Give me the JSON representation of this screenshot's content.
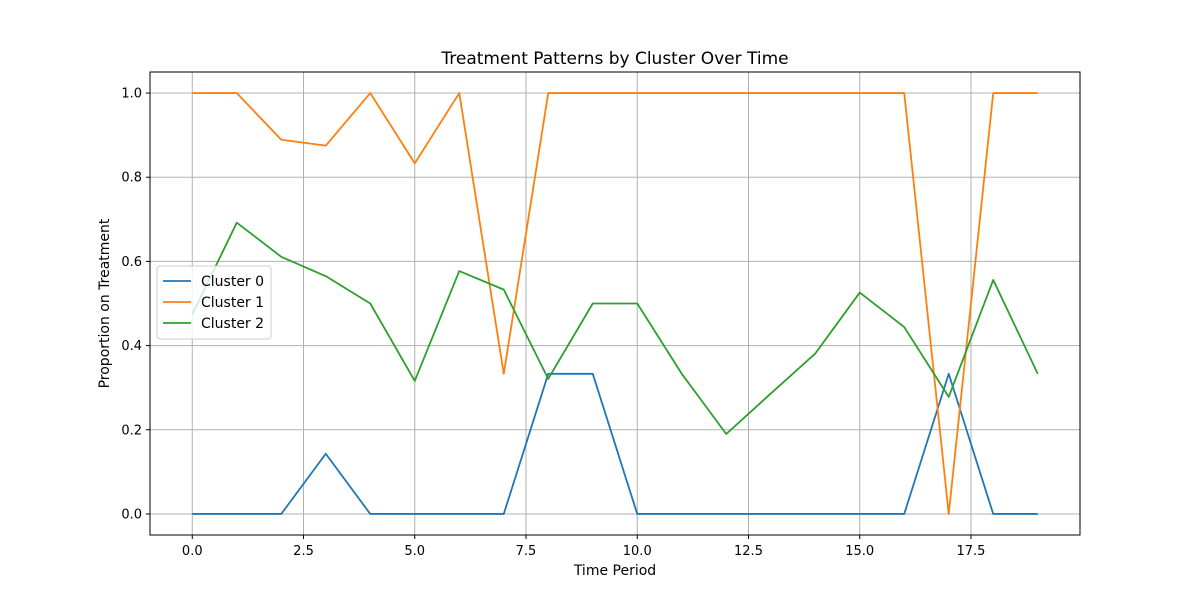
{
  "chart_data": {
    "type": "line",
    "title": "Treatment Patterns by Cluster Over Time",
    "xlabel": "Time Period",
    "ylabel": "Proportion on Treatment",
    "xlim": [
      -0.95,
      19.95
    ],
    "ylim": [
      -0.05,
      1.05
    ],
    "xticks": [
      0,
      2.5,
      5,
      7.5,
      10,
      12.5,
      15,
      17.5
    ],
    "xtick_labels": [
      "0.0",
      "2.5",
      "5.0",
      "7.5",
      "10.0",
      "12.5",
      "15.0",
      "17.5"
    ],
    "yticks": [
      0,
      0.2,
      0.4,
      0.6,
      0.8,
      1.0
    ],
    "ytick_labels": [
      "0.0",
      "0.2",
      "0.4",
      "0.6",
      "0.8",
      "1.0"
    ],
    "grid": true,
    "legend_position": "center-left",
    "x": [
      0,
      1,
      2,
      3,
      4,
      5,
      6,
      7,
      8,
      9,
      10,
      11,
      12,
      13,
      14,
      15,
      16,
      17,
      18,
      19
    ],
    "series": [
      {
        "name": "Cluster 0",
        "color": "#1f77b4",
        "values": [
          0,
          0,
          0,
          0.143,
          0,
          0,
          0,
          0,
          0.333,
          0.333,
          0,
          0,
          0,
          0,
          0,
          0,
          0,
          0.333,
          0,
          0
        ]
      },
      {
        "name": "Cluster 1",
        "color": "#ff7f0e",
        "values": [
          1.0,
          1.0,
          0.889,
          0.875,
          1.0,
          0.833,
          1.0,
          0.333,
          1.0,
          1.0,
          1.0,
          1.0,
          1.0,
          1.0,
          1.0,
          1.0,
          1.0,
          0,
          1.0,
          1.0
        ]
      },
      {
        "name": "Cluster 2",
        "color": "#2ca02c",
        "values": [
          0.474,
          0.692,
          0.611,
          0.565,
          0.5,
          0.316,
          0.577,
          0.533,
          0.321,
          0.5,
          0.5,
          0.333,
          0.19,
          0.286,
          0.381,
          0.526,
          0.444,
          0.278,
          0.556,
          0.333
        ]
      }
    ]
  }
}
